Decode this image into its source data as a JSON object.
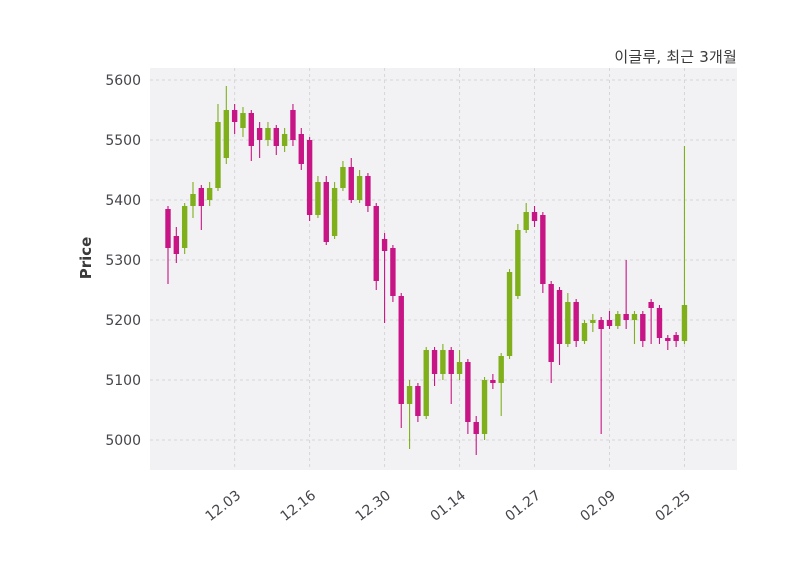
{
  "header": {
    "title": "이글루, 최근 3개월"
  },
  "chart_data": {
    "type": "candlestick",
    "title": "이글루, 최근 3개월",
    "ylabel": "Price",
    "grid": true,
    "up_color": "#7FAF1B",
    "down_color": "#C71585",
    "ylim": [
      4950,
      5620
    ],
    "y_ticks": [
      5000,
      5100,
      5200,
      5300,
      5400,
      5500,
      5600
    ],
    "x_ticks": [
      {
        "index": 8,
        "label": "12.03"
      },
      {
        "index": 17,
        "label": "12.16"
      },
      {
        "index": 26,
        "label": "12.30"
      },
      {
        "index": 35,
        "label": "01.14"
      },
      {
        "index": 44,
        "label": "01.27"
      },
      {
        "index": 53,
        "label": "02.09"
      },
      {
        "index": 62,
        "label": "02.25"
      }
    ],
    "ohlc_format": [
      "open",
      "high",
      "low",
      "close"
    ],
    "ohlc": [
      [
        5385,
        5390,
        5260,
        5320
      ],
      [
        5340,
        5355,
        5295,
        5310
      ],
      [
        5320,
        5395,
        5310,
        5390
      ],
      [
        5390,
        5430,
        5370,
        5410
      ],
      [
        5420,
        5425,
        5350,
        5390
      ],
      [
        5400,
        5430,
        5390,
        5420
      ],
      [
        5420,
        5560,
        5415,
        5530
      ],
      [
        5470,
        5590,
        5460,
        5550
      ],
      [
        5550,
        5560,
        5510,
        5530
      ],
      [
        5520,
        5555,
        5505,
        5545
      ],
      [
        5545,
        5550,
        5465,
        5490
      ],
      [
        5520,
        5530,
        5470,
        5500
      ],
      [
        5500,
        5530,
        5490,
        5520
      ],
      [
        5520,
        5525,
        5475,
        5490
      ],
      [
        5490,
        5520,
        5480,
        5510
      ],
      [
        5550,
        5560,
        5490,
        5500
      ],
      [
        5510,
        5520,
        5450,
        5460
      ],
      [
        5500,
        5505,
        5365,
        5375
      ],
      [
        5375,
        5440,
        5370,
        5430
      ],
      [
        5430,
        5440,
        5325,
        5330
      ],
      [
        5340,
        5430,
        5335,
        5420
      ],
      [
        5420,
        5465,
        5415,
        5455
      ],
      [
        5455,
        5470,
        5395,
        5400
      ],
      [
        5400,
        5450,
        5395,
        5440
      ],
      [
        5440,
        5445,
        5380,
        5390
      ],
      [
        5390,
        5395,
        5250,
        5265
      ],
      [
        5335,
        5345,
        5195,
        5315
      ],
      [
        5320,
        5325,
        5230,
        5240
      ],
      [
        5240,
        5245,
        5020,
        5060
      ],
      [
        5060,
        5100,
        4985,
        5090
      ],
      [
        5090,
        5095,
        5030,
        5040
      ],
      [
        5040,
        5155,
        5035,
        5150
      ],
      [
        5150,
        5155,
        5090,
        5110
      ],
      [
        5110,
        5160,
        5100,
        5150
      ],
      [
        5150,
        5155,
        5060,
        5110
      ],
      [
        5110,
        5150,
        5100,
        5130
      ],
      [
        5130,
        5135,
        5010,
        5030
      ],
      [
        5030,
        5040,
        4975,
        5010
      ],
      [
        5010,
        5105,
        5000,
        5100
      ],
      [
        5100,
        5110,
        5085,
        5095
      ],
      [
        5095,
        5145,
        5040,
        5140
      ],
      [
        5140,
        5285,
        5135,
        5280
      ],
      [
        5240,
        5360,
        5235,
        5350
      ],
      [
        5350,
        5395,
        5345,
        5380
      ],
      [
        5380,
        5390,
        5355,
        5365
      ],
      [
        5375,
        5380,
        5245,
        5260
      ],
      [
        5260,
        5265,
        5095,
        5130
      ],
      [
        5250,
        5255,
        5125,
        5160
      ],
      [
        5160,
        5245,
        5155,
        5230
      ],
      [
        5230,
        5235,
        5155,
        5165
      ],
      [
        5165,
        5200,
        5160,
        5195
      ],
      [
        5195,
        5210,
        5180,
        5200
      ],
      [
        5200,
        5205,
        5010,
        5185
      ],
      [
        5200,
        5215,
        5185,
        5190
      ],
      [
        5190,
        5215,
        5185,
        5210
      ],
      [
        5210,
        5300,
        5185,
        5200
      ],
      [
        5200,
        5215,
        5160,
        5210
      ],
      [
        5210,
        5215,
        5155,
        5165
      ],
      [
        5230,
        5235,
        5160,
        5220
      ],
      [
        5220,
        5225,
        5160,
        5170
      ],
      [
        5170,
        5175,
        5150,
        5165
      ],
      [
        5175,
        5180,
        5155,
        5165
      ],
      [
        5165,
        5490,
        5160,
        5225
      ]
    ]
  }
}
